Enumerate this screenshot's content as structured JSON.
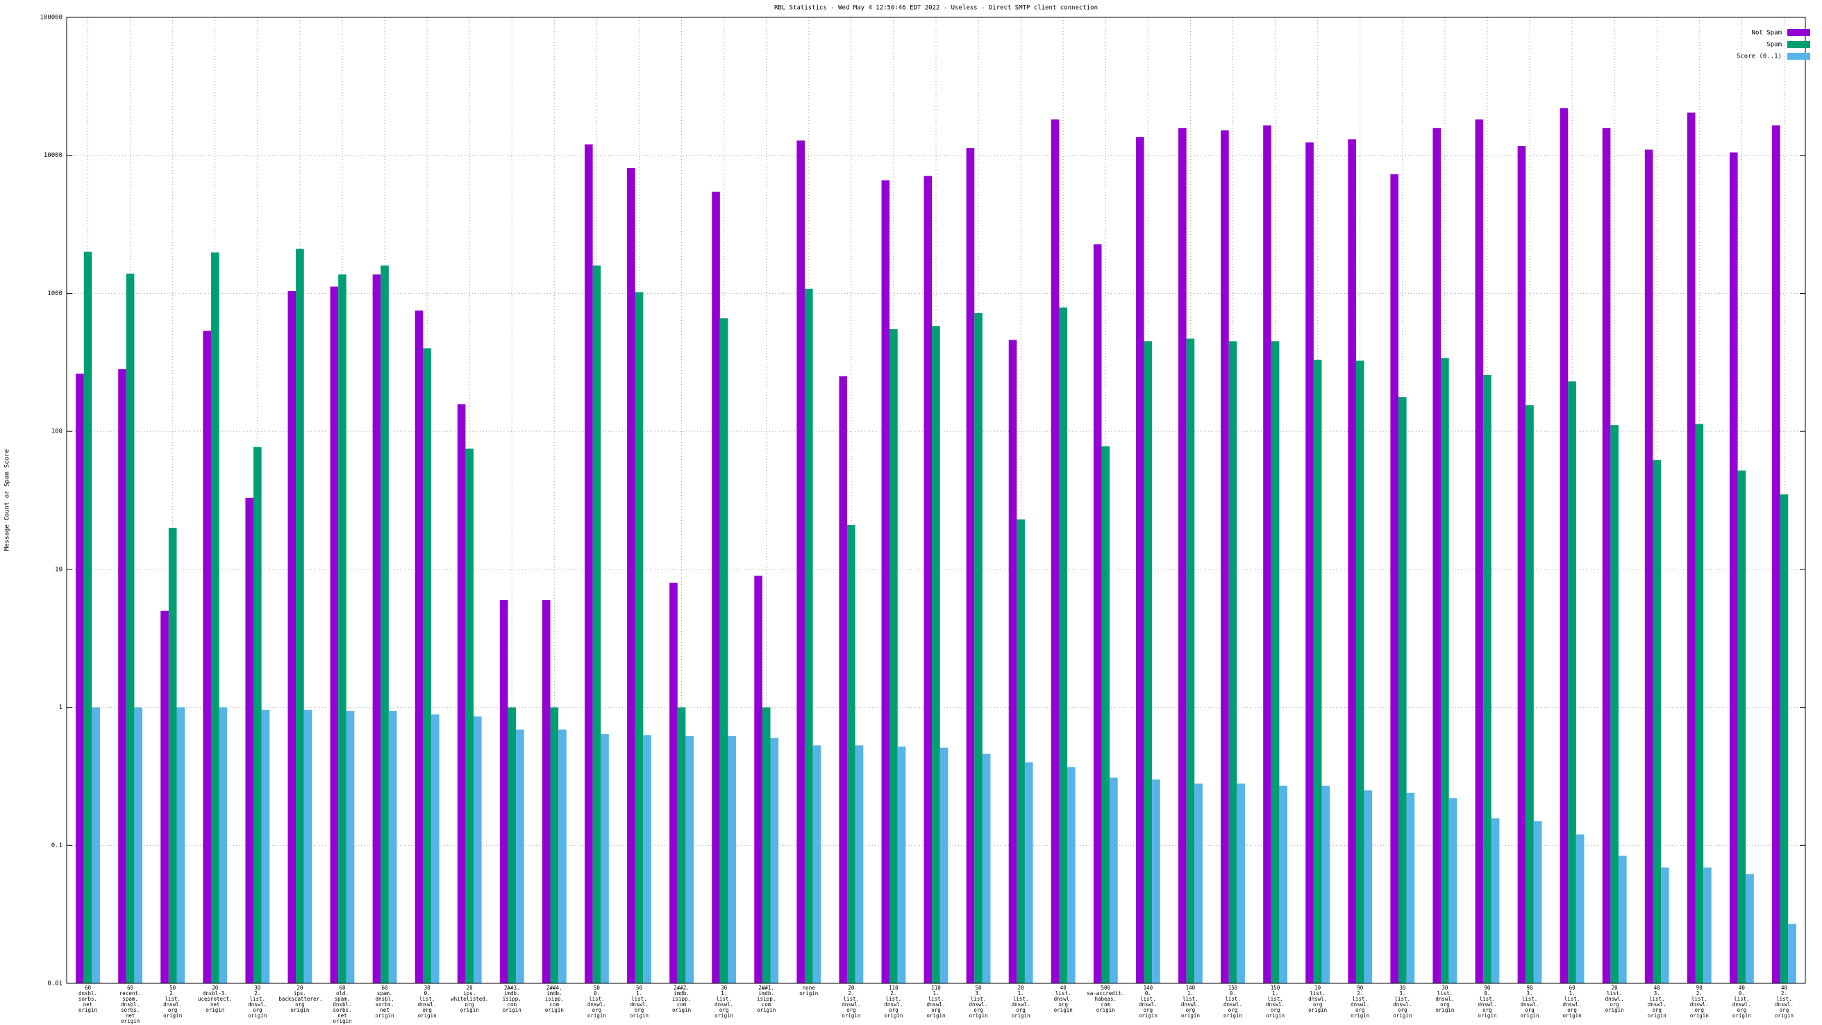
{
  "chart_data": {
    "type": "bar",
    "title": "RBL Statistics - Wed May  4 12:50:46 EDT 2022 - Useless - Direct SMTP client connection",
    "ylabel": "Message Count or Spam Score",
    "log_y": true,
    "grid": true,
    "legend": "top right",
    "ylim": [
      0.01,
      100000
    ],
    "yticks": [
      0.01,
      0.1,
      1,
      10,
      100,
      1000,
      10000,
      100000
    ],
    "categories": [
      "60\ndnsbl.\nsorbs.\nnet\norigin",
      "60\nrecent.\nspam.\ndnsbl.\nsorbs.\nnet\norigin",
      "50\n2.\nlist.\ndnswl.\norg\norigin",
      "20\ndnsbl-3.\nuceprotect.\nnet\norigin",
      "30\n2.\nlist.\ndnswl.\norg\norigin",
      "20\nips.\nbackscatterer.\norg\norigin",
      "60\nold.\nspam.\ndnsbl.\nsorbs.\nnet\norigin",
      "60\nspam.\ndnsbl.\nsorbs.\nnet\norigin",
      "30\n0.\nlist.\ndnswl.\norg\norigin",
      "20\nips.\nwhitelisted.\norg\norigin",
      "2##3.\nimdb.\nisipp.\ncom\norigin",
      "2##4.\nimdb.\nisipp.\ncom\norigin",
      "50\n0.\nlist.\ndnswl.\norg\norigin",
      "50\n1.\nlist.\ndnswl.\norg\norigin",
      "2##2.\nimdb.\nisipp.\ncom\norigin",
      "30\n1.\nlist.\ndnswl.\norg\norigin",
      "2##1.\nimdb.\nisipp.\ncom\norigin",
      "none\norigin",
      "20\n2.\nlist.\ndnswl.\norg\norigin",
      "110\n2.\nlist.\ndnswl.\norg\norigin",
      "110\n1.\nlist.\ndnswl.\norg\norigin",
      "50\n3.\nlist.\ndnswl.\norg\norigin",
      "20\n1.\nlist.\ndnswl.\norg\norigin",
      "40\nlist.\ndnswl.\norg\norigin",
      "500\nsa-accredit.\nhabeas.\ncom\norigin",
      "140\n0.\nlist.\ndnswl.\norg\norigin",
      "140\n1.\nlist.\ndnswl.\norg\norigin",
      "150\n0.\nlist.\ndnswl.\norg\norigin",
      "150\n1.\nlist.\ndnswl.\norg\norigin",
      "10\nlist.\ndnswl.\norg\norigin",
      "90\n2.\nlist.\ndnswl.\norg\norigin",
      "30\n3.\nlist.\ndnswl.\norg\norigin",
      "30\nlist.\ndnswl.\norg\norigin",
      "90\n0.\nlist.\ndnswl.\norg\norigin",
      "90\n3.\nlist.\ndnswl.\norg\norigin",
      "60\n1.\nlist.\ndnswl.\norg\norigin",
      "20\nlist.\ndnswl.\norg\norigin",
      "40\n3.\nlist.\ndnswl.\norg\norigin",
      "90\n2.\nlist.\ndnswl.\norg\norigin",
      "40\n0.\nlist.\ndnswl.\norg\norigin",
      "40\n2.\nlist.\ndnswl.\norg\norigin"
    ],
    "series": [
      {
        "name": "Not Spam",
        "color": "#9400d3",
        "values": [
          262,
          283,
          5,
          535,
          33,
          1040,
          1120,
          1370,
          750,
          157,
          6,
          6,
          12000,
          8100,
          8,
          5450,
          9,
          12800,
          251,
          6600,
          7100,
          11300,
          460,
          18200,
          2270,
          13600,
          15800,
          15200,
          16500,
          12400,
          13100,
          7300,
          15800,
          18200,
          11700,
          22000,
          15800,
          11000,
          20400,
          10500,
          16500
        ]
      },
      {
        "name": "Spam",
        "color": "#009e73",
        "values": [
          2000,
          1390,
          20,
          1980,
          77,
          2100,
          1370,
          1590,
          400,
          75,
          1,
          1,
          1590,
          1020,
          1,
          660,
          1,
          1080,
          21,
          550,
          580,
          720,
          23,
          790,
          78,
          450,
          470,
          450,
          450,
          330,
          325,
          177,
          340,
          256,
          155,
          230,
          111,
          62,
          113,
          52,
          35
        ]
      },
      {
        "name": "Score (0..1)",
        "color": "#56b4e9",
        "values": [
          1,
          1,
          1,
          1,
          0.96,
          0.96,
          0.94,
          0.94,
          0.89,
          0.86,
          0.69,
          0.69,
          0.64,
          0.63,
          0.62,
          0.62,
          0.6,
          0.53,
          0.53,
          0.52,
          0.51,
          0.46,
          0.4,
          0.37,
          0.31,
          0.3,
          0.28,
          0.28,
          0.27,
          0.27,
          0.25,
          0.24,
          0.22,
          0.157,
          0.15,
          0.12,
          0.084,
          0.069,
          0.069,
          0.062,
          0.027
        ]
      }
    ]
  }
}
